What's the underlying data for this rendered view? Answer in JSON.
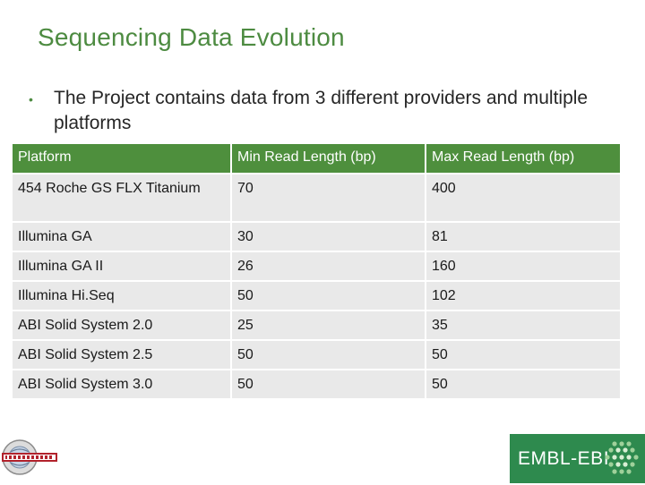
{
  "slide": {
    "title": "Sequencing Data Evolution",
    "bullet": "The Project contains data from 3 different providers and multiple platforms"
  },
  "table": {
    "headers": [
      "Platform",
      "Min Read Length (bp)",
      "Max Read Length (bp)"
    ],
    "rows": [
      [
        "454 Roche GS FLX Titanium",
        "70",
        "400"
      ],
      [
        "Illumina GA",
        "30",
        "81"
      ],
      [
        "Illumina GA II",
        "26",
        "160"
      ],
      [
        "Illumina Hi.Seq",
        "50",
        "102"
      ],
      [
        "ABI Solid System 2.0",
        "25",
        "35"
      ],
      [
        "ABI Solid System 2.5",
        "50",
        "50"
      ],
      [
        "ABI Solid System 3.0",
        "50",
        "50"
      ]
    ]
  },
  "logos": {
    "right_text": "EMBL-EBI",
    "left_icon": "1000-genomes-logo",
    "right_icon": "embl-ebi-logo",
    "brand_green": "#2e8a4e",
    "title_green": "#4d8b41",
    "header_green": "#4e8f3d"
  }
}
